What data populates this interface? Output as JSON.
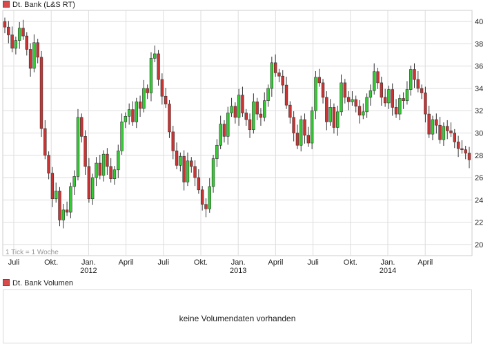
{
  "chart": {
    "title": "Dt. Bank (L&S RT)",
    "tick_note": "1 Tick = 1 Woche",
    "volume_title": "Dt. Bank Volumen",
    "volume_message": "keine Volumendaten vorhanden"
  },
  "chart_data": [
    {
      "type": "candlestick",
      "title": "Dt. Bank (L&S RT)",
      "interval": "1 Tick = 1 Woche",
      "ylim": [
        19,
        41
      ],
      "y_ticks": [
        20,
        22,
        24,
        26,
        28,
        30,
        32,
        34,
        36,
        38,
        40
      ],
      "y_axis_side": "right",
      "x_ticks": [
        {
          "label": "Juli",
          "year": ""
        },
        {
          "label": "Okt.",
          "year": ""
        },
        {
          "label": "Jan.",
          "year": "2012"
        },
        {
          "label": "April",
          "year": ""
        },
        {
          "label": "Juli",
          "year": ""
        },
        {
          "label": "Okt.",
          "year": ""
        },
        {
          "label": "Jan.",
          "year": "2013"
        },
        {
          "label": "April",
          "year": ""
        },
        {
          "label": "Juli",
          "year": ""
        },
        {
          "label": "Okt.",
          "year": ""
        },
        {
          "label": "Jan.",
          "year": "2014"
        },
        {
          "label": "April",
          "year": ""
        }
      ],
      "colors": {
        "up": "#33cc33",
        "down": "#cc3333",
        "grid": "#dddddd"
      },
      "series": [
        {
          "name": "Dt. Bank (L&S RT)",
          "close": [
            39.5,
            38.8,
            37.6,
            38.3,
            39.4,
            38.7,
            37.5,
            35.8,
            38.1,
            36.8,
            30.4,
            28.0,
            26.4,
            24.1,
            24.8,
            22.2,
            23.1,
            22.9,
            25.2,
            26.1,
            31.4,
            29.7,
            27.0,
            24.1,
            26.0,
            27.3,
            26.2,
            28.1,
            27.0,
            25.9,
            26.7,
            28.4,
            31.0,
            31.5,
            32.1,
            31.0,
            32.8,
            32.2,
            34.0,
            33.6,
            36.7,
            37.1,
            34.8,
            33.3,
            32.6,
            30.1,
            28.4,
            27.1,
            27.9,
            25.6,
            27.5,
            27.0,
            26.0,
            24.9,
            23.6,
            23.2,
            25.2,
            27.7,
            28.9,
            30.8,
            29.7,
            31.8,
            32.4,
            31.4,
            33.4,
            31.8,
            31.2,
            30.3,
            32.8,
            31.7,
            31.4,
            32.9,
            34.0,
            36.3,
            35.4,
            35.1,
            34.3,
            32.5,
            31.4,
            30.0,
            28.9,
            31.2,
            29.8,
            29.1,
            32.0,
            35.0,
            34.5,
            33.2,
            31.0,
            32.3,
            30.5,
            31.9,
            34.5,
            33.2,
            32.8,
            33.0,
            32.4,
            31.6,
            31.9,
            33.2,
            33.8,
            35.5,
            34.5,
            33.2,
            32.7,
            33.9,
            32.3,
            31.7,
            33.1,
            32.9,
            33.9,
            35.7,
            34.8,
            34.0,
            33.6,
            31.7,
            29.9,
            31.2,
            30.7,
            29.4,
            30.6,
            30.2,
            30.0,
            29.2,
            28.6,
            28.5,
            28.2,
            27.6
          ]
        }
      ]
    }
  ]
}
